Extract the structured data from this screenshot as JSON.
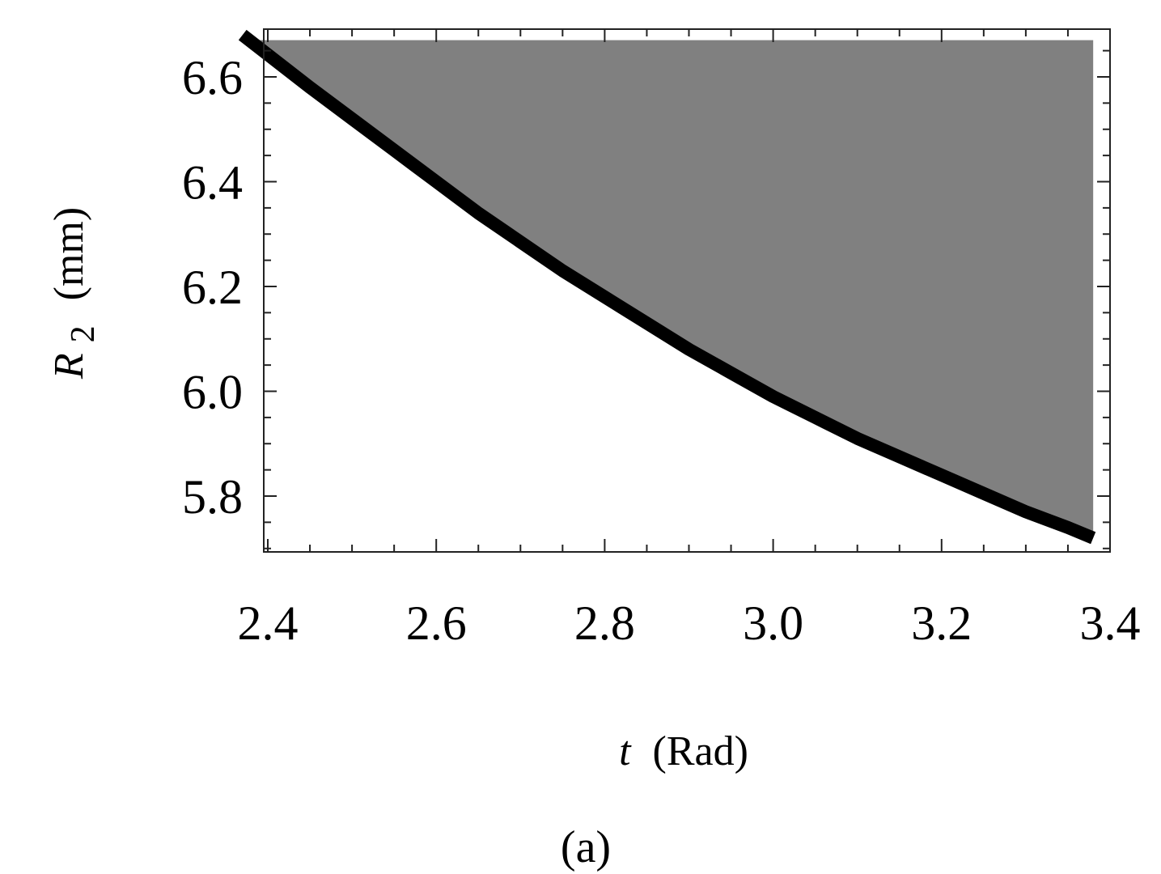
{
  "chart_data": {
    "type": "area",
    "xlabel": {
      "symbol": "t",
      "unit": "(Rad)"
    },
    "ylabel": {
      "symbol": "R",
      "subscript": "2",
      "unit": "(mm)"
    },
    "xlim": [
      2.35,
      3.4
    ],
    "ylim": [
      5.7,
      6.68
    ],
    "x_ticks": [
      "2.4",
      "2.6",
      "2.8",
      "3.0",
      "3.2",
      "3.4"
    ],
    "y_ticks": [
      "5.8",
      "6.0",
      "6.2",
      "6.4",
      "6.6"
    ],
    "grid": false,
    "fill_color": "#808080",
    "line_color": "#000000",
    "series": [
      {
        "x": [
          2.37,
          2.45,
          2.5,
          2.55,
          2.6,
          2.65,
          2.7,
          2.75,
          2.8,
          2.85,
          2.9,
          2.95,
          3.0,
          3.05,
          3.1,
          3.15,
          3.2,
          3.25,
          3.3,
          3.35,
          3.38
        ],
        "values": [
          6.68,
          6.58,
          6.52,
          6.46,
          6.4,
          6.34,
          6.285,
          6.23,
          6.18,
          6.13,
          6.08,
          6.035,
          5.99,
          5.95,
          5.91,
          5.875,
          5.84,
          5.805,
          5.77,
          5.74,
          5.72
        ]
      }
    ],
    "region": {
      "x_from": 2.37,
      "x_to": 3.38,
      "y_top": 6.67
    }
  },
  "caption": "(a)"
}
